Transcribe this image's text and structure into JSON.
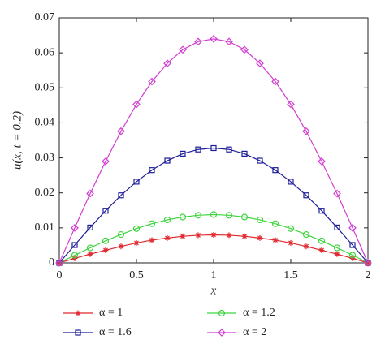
{
  "chart_data": {
    "type": "line",
    "x_label": "x",
    "y_label": "u(x, t = 0.2)",
    "x": [
      0,
      0.1,
      0.2,
      0.3,
      0.4,
      0.5,
      0.6,
      0.7,
      0.8,
      0.9,
      1,
      1.1,
      1.2,
      1.3,
      1.4,
      1.5,
      1.6,
      1.7,
      1.8,
      1.9,
      2
    ],
    "xlim": [
      0,
      2
    ],
    "xticks": [
      0,
      0.5,
      1,
      1.5,
      2
    ],
    "ylim": [
      0,
      0.07
    ],
    "yticks": [
      0,
      0.01,
      0.02,
      0.03,
      0.04,
      0.05,
      0.06,
      0.07
    ],
    "series": [
      {
        "name": "α = 1",
        "color": "#e0282e",
        "marker": "star",
        "values": [
          0,
          0.0013,
          0.0025,
          0.0036,
          0.0047,
          0.0057,
          0.0065,
          0.0071,
          0.0076,
          0.0079,
          0.008,
          0.0079,
          0.0076,
          0.0071,
          0.0065,
          0.0057,
          0.0047,
          0.0036,
          0.0025,
          0.0013,
          0
        ]
      },
      {
        "name": "α = 1.2",
        "color": "#3fd43f",
        "marker": "circle",
        "values": [
          0,
          0.0022,
          0.0043,
          0.0063,
          0.0081,
          0.0098,
          0.0112,
          0.0123,
          0.0131,
          0.0136,
          0.0138,
          0.0136,
          0.0131,
          0.0123,
          0.0112,
          0.0098,
          0.0081,
          0.0063,
          0.0043,
          0.0022,
          0
        ]
      },
      {
        "name": "α = 1.6",
        "color": "#1c1c9a",
        "marker": "square",
        "values": [
          0,
          0.0051,
          0.0101,
          0.0149,
          0.0193,
          0.0232,
          0.0265,
          0.0292,
          0.0312,
          0.0324,
          0.0328,
          0.0324,
          0.0312,
          0.0292,
          0.0265,
          0.0232,
          0.0193,
          0.0149,
          0.0101,
          0.0051,
          0
        ]
      },
      {
        "name": "α = 2",
        "color": "#d23cd2",
        "marker": "diamond",
        "values": [
          0,
          0.01,
          0.0198,
          0.029,
          0.0376,
          0.0453,
          0.0518,
          0.057,
          0.0609,
          0.0632,
          0.064,
          0.0632,
          0.0609,
          0.057,
          0.0518,
          0.0453,
          0.0376,
          0.029,
          0.0198,
          0.01,
          0
        ]
      }
    ]
  }
}
